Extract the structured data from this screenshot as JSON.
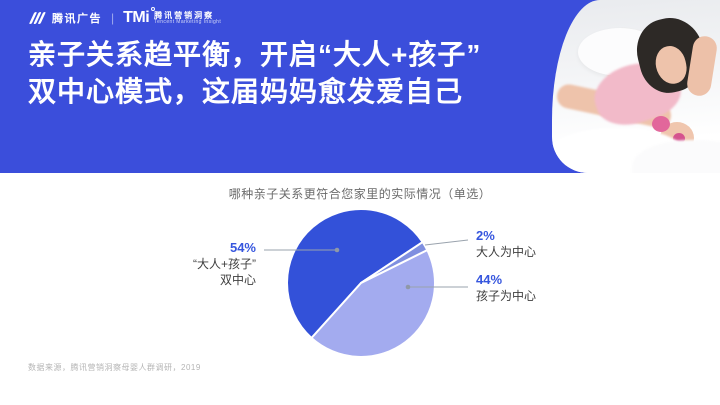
{
  "header": {
    "banner_color": "#3B4EDB",
    "logo": {
      "tencent_ads": "腾讯广告",
      "separator": "|",
      "tmi": "TMi",
      "tmi_cn": "腾讯营销洞察",
      "tmi_en": "Tencent Marketing Insight"
    },
    "headline": {
      "line1": "亲子关系趋平衡，开启“大人+孩子”",
      "line2": "双中心模式，这届妈妈愈发爱自己"
    }
  },
  "chart_data": {
    "type": "pie",
    "title": "哪种亲子关系更符合您家里的实际情况（单选）",
    "unit": "%",
    "start_angle_deg": -138,
    "legend_position": "callout-labels",
    "segments": [
      {
        "label": "“大人+孩子”双中心",
        "value": 54,
        "color": "#3351D9"
      },
      {
        "label": "大人为中心",
        "value": 2,
        "color": "#7F8FE0"
      },
      {
        "label": "孩子为中心",
        "value": 44,
        "color": "#A3ABEF"
      }
    ],
    "callouts": {
      "left": {
        "pct": "54%",
        "line1": "“大人+孩子”",
        "line2": "双中心"
      },
      "right_top": {
        "pct": "2%",
        "text": "大人为中心"
      },
      "right_bottom": {
        "pct": "44%",
        "text": "孩子为中心"
      }
    },
    "pct_color": "#3656DE",
    "label_color": "#3E3E3E"
  },
  "footer": {
    "source": "数据来源，腾讯营销洞察母婴人群调研，2019"
  }
}
